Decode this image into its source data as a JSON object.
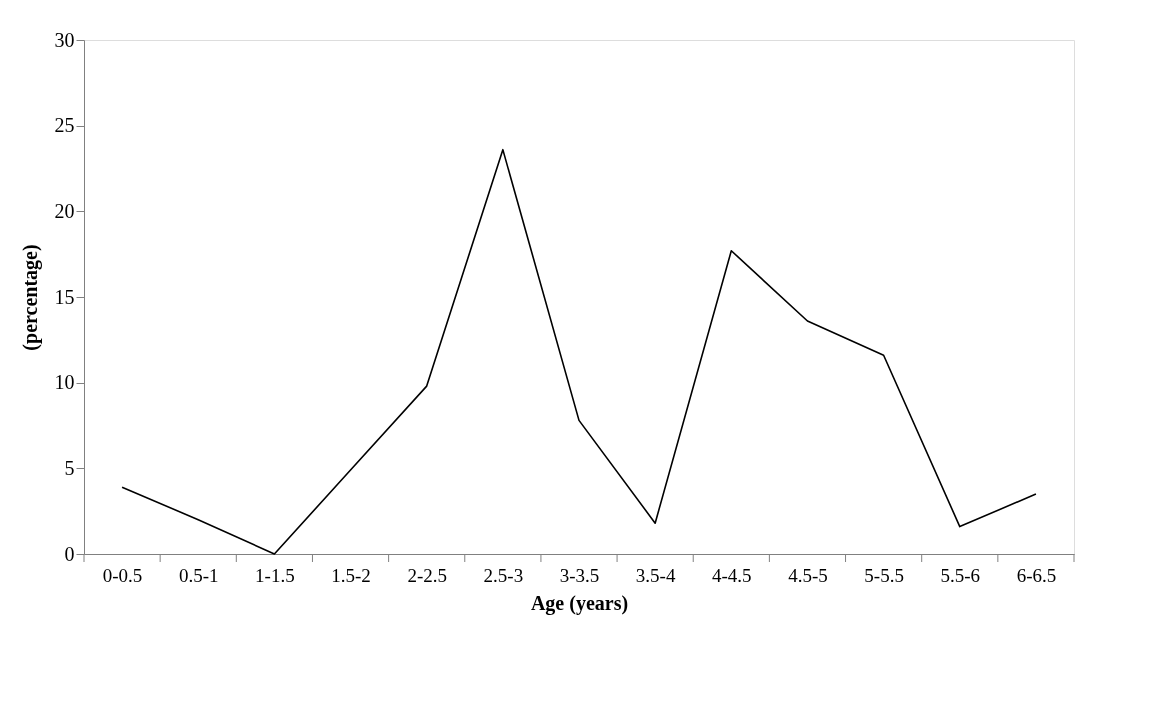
{
  "chart_data": {
    "type": "line",
    "xlabel": "Age (years)",
    "ylabel": "(percentage)",
    "categories": [
      "0-0.5",
      "0.5-1",
      "1-1.5",
      "1.5-2",
      "2-2.5",
      "2.5-3",
      "3-3.5",
      "3.5-4",
      "4-4.5",
      "4.5-5",
      "5-5.5",
      "5.5-6",
      "6-6.5"
    ],
    "series": [
      {
        "color": "#000000",
        "values": [
          3.9,
          2.0,
          0,
          4.9,
          9.8,
          23.6,
          7.8,
          1.8,
          17.7,
          13.6,
          11.6,
          1.6,
          3.5
        ]
      }
    ],
    "ylim": [
      0,
      30
    ],
    "yticks": [
      0,
      5,
      10,
      15,
      20,
      25,
      30
    ],
    "grid": false,
    "marker": "none",
    "line_style": "solid"
  }
}
